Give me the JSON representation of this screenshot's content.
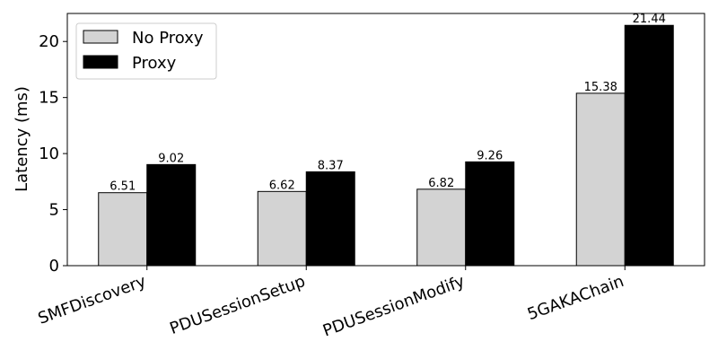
{
  "chart_data": {
    "type": "bar",
    "title": "",
    "xlabel": "",
    "ylabel": "Latency (ms)",
    "ylim": [
      0,
      22.5
    ],
    "yticks": [
      0,
      5,
      10,
      15,
      20
    ],
    "categories": [
      "SMFDiscovery",
      "PDUSessionSetup",
      "PDUSessionModify",
      "5GAKAChain"
    ],
    "series": [
      {
        "name": "No Proxy",
        "color": "#d3d3d3",
        "values": [
          6.51,
          6.62,
          6.82,
          15.38
        ],
        "labels": [
          "6.51",
          "6.62",
          "6.82",
          "15.38"
        ]
      },
      {
        "name": "Proxy",
        "color": "#000000",
        "values": [
          9.02,
          8.37,
          9.26,
          21.44
        ],
        "labels": [
          "9.02",
          "8.37",
          "9.26",
          "21.44"
        ]
      }
    ],
    "legend": {
      "position": "top-left"
    },
    "grid": false
  }
}
